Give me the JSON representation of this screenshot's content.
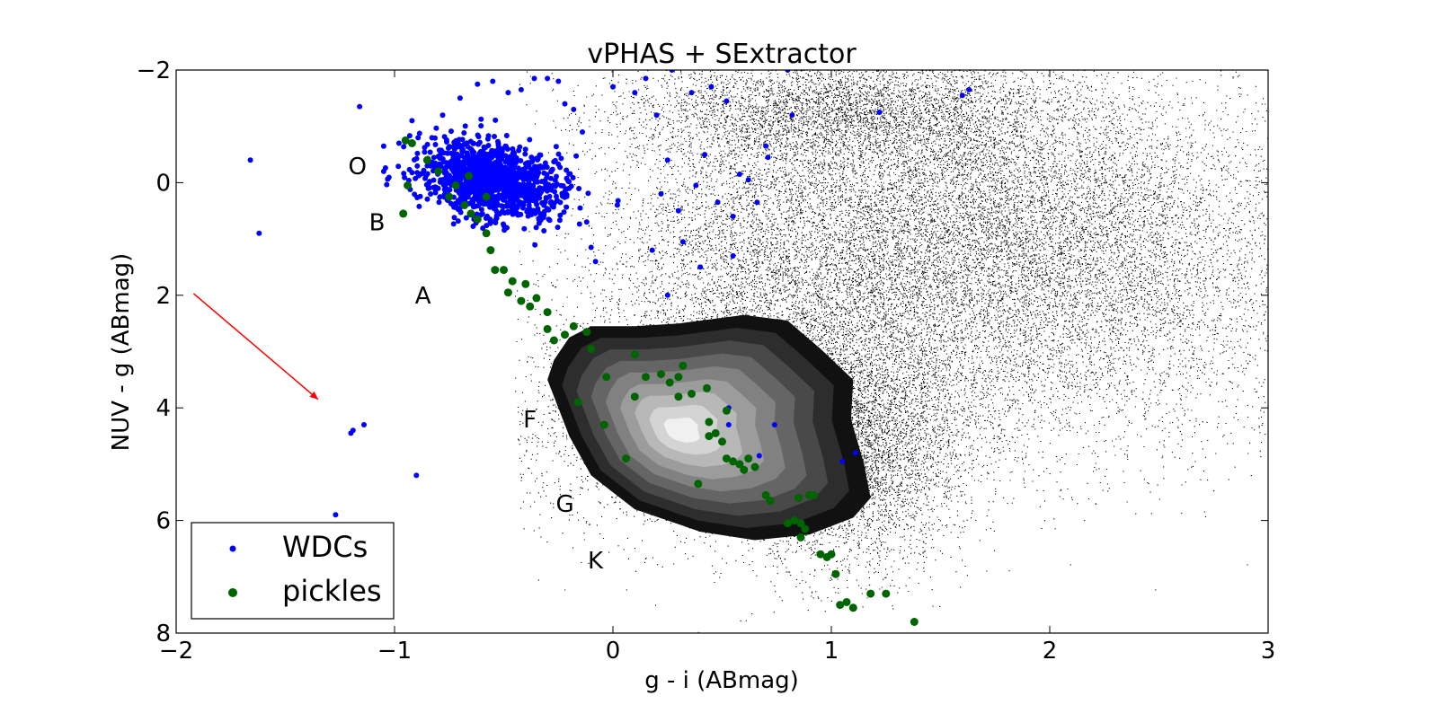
{
  "chart_data": {
    "type": "scatter",
    "title": "vPHAS + SExtractor",
    "xlabel": "g - i (ABmag)",
    "ylabel": "NUV - g (ABmag)",
    "xlim": [
      -2,
      3
    ],
    "ylim": [
      8,
      -2
    ],
    "y_inverted": true,
    "grid": false,
    "legend": "lower-left",
    "x_ticks": [
      -2,
      -1,
      0,
      1,
      2,
      3
    ],
    "x_tick_labels": [
      "−2",
      "−1",
      "0",
      "1",
      "2",
      "3"
    ],
    "y_ticks": [
      -2,
      0,
      2,
      4,
      6,
      8
    ],
    "y_tick_labels": [
      "−2",
      "0",
      "2",
      "4",
      "6",
      "8"
    ],
    "background_density": {
      "description_series": "field stars",
      "color": "#000000",
      "contour_peak": {
        "x": 0.3,
        "y": 4.4
      },
      "contour_outline": [
        [
          -0.27,
          3.15
        ],
        [
          -0.2,
          2.75
        ],
        [
          -0.1,
          2.55
        ],
        [
          0.1,
          2.55
        ],
        [
          0.3,
          2.5
        ],
        [
          0.6,
          2.35
        ],
        [
          0.8,
          2.45
        ],
        [
          0.95,
          2.95
        ],
        [
          1.1,
          3.5
        ],
        [
          1.09,
          4.2
        ],
        [
          1.15,
          5.0
        ],
        [
          1.18,
          5.6
        ],
        [
          1.1,
          5.95
        ],
        [
          0.9,
          6.25
        ],
        [
          0.65,
          6.35
        ],
        [
          0.4,
          6.2
        ],
        [
          0.1,
          5.8
        ],
        [
          -0.1,
          5.2
        ],
        [
          -0.2,
          4.5
        ],
        [
          -0.3,
          3.5
        ]
      ],
      "contour_levels": 9
    },
    "reddening_vector": {
      "x0": -1.92,
      "y0": 1.97,
      "x1": -1.35,
      "y1": 3.85,
      "color": "#ff0000"
    },
    "spectral_type_labels": [
      {
        "text": "O",
        "x": -1.17,
        "y": -0.15
      },
      {
        "text": "B",
        "x": -1.08,
        "y": 0.85
      },
      {
        "text": "A",
        "x": -0.87,
        "y": 2.15
      },
      {
        "text": "F",
        "x": -0.38,
        "y": 4.35
      },
      {
        "text": "G",
        "x": -0.22,
        "y": 5.85
      },
      {
        "text": "K",
        "x": -0.08,
        "y": 6.85
      }
    ],
    "series": [
      {
        "name": "WDCs",
        "color": "#0000ff",
        "points": [
          [
            -1.66,
            -0.4
          ],
          [
            -1.62,
            0.9
          ],
          [
            -1.16,
            -1.35
          ],
          [
            -1.19,
            4.4
          ],
          [
            -1.2,
            4.45
          ],
          [
            -1.14,
            4.3
          ],
          [
            -0.9,
            5.2
          ],
          [
            -1.27,
            5.9
          ],
          [
            -1.05,
            -0.2
          ],
          [
            -0.98,
            -0.7
          ],
          [
            -0.92,
            -1.1
          ],
          [
            -0.85,
            -0.3
          ],
          [
            -0.8,
            0.1
          ],
          [
            -0.78,
            -1.2
          ],
          [
            -0.7,
            -1.5
          ],
          [
            -0.62,
            -1.75
          ],
          [
            -0.55,
            -1.8
          ],
          [
            -0.48,
            -1.6
          ],
          [
            -0.42,
            -1.65
          ],
          [
            -0.36,
            -1.85
          ],
          [
            -0.3,
            -1.85
          ],
          [
            -0.25,
            -1.8
          ],
          [
            -0.22,
            -1.4
          ],
          [
            -0.18,
            -1.3
          ],
          [
            -0.14,
            -0.9
          ],
          [
            -0.2,
            0.1
          ],
          [
            -0.15,
            0.45
          ],
          [
            -0.12,
            0.7
          ],
          [
            -0.1,
            1.15
          ],
          [
            -0.08,
            1.4
          ],
          [
            0.0,
            -1.7
          ],
          [
            0.1,
            -1.6
          ],
          [
            0.15,
            -1.85
          ],
          [
            0.2,
            -1.2
          ],
          [
            0.22,
            0.2
          ],
          [
            0.25,
            -0.4
          ],
          [
            0.3,
            0.5
          ],
          [
            0.32,
            1.05
          ],
          [
            0.36,
            -1.6
          ],
          [
            0.38,
            0.05
          ],
          [
            0.42,
            -0.5
          ],
          [
            0.45,
            -1.7
          ],
          [
            0.48,
            0.35
          ],
          [
            0.52,
            -1.45
          ],
          [
            0.55,
            0.6
          ],
          [
            0.58,
            -0.15
          ],
          [
            0.62,
            -0.05
          ],
          [
            0.66,
            0.35
          ],
          [
            0.7,
            -0.65
          ],
          [
            0.55,
            1.3
          ],
          [
            0.4,
            1.5
          ],
          [
            0.18,
            1.2
          ],
          [
            0.25,
            2.0
          ],
          [
            0.27,
            -2.0
          ],
          [
            0.53,
            4.0
          ],
          [
            0.53,
            4.3
          ],
          [
            0.74,
            4.3
          ],
          [
            0.67,
            4.85
          ],
          [
            1.05,
            4.95
          ],
          [
            1.11,
            4.8
          ],
          [
            0.8,
            -2.0
          ],
          [
            0.82,
            -1.2
          ],
          [
            1.22,
            -1.25
          ],
          [
            1.6,
            -1.55
          ],
          [
            1.63,
            -1.65
          ],
          [
            0.71,
            -0.45
          ]
        ],
        "cluster": {
          "center": [
            -0.55,
            -0.05
          ],
          "spread": [
            0.16,
            0.45
          ],
          "count": 1200
        }
      },
      {
        "name": "pickles",
        "color": "#006400",
        "points": [
          [
            -0.95,
            -0.75
          ],
          [
            -0.92,
            -0.7
          ],
          [
            -0.96,
            0.55
          ],
          [
            -0.94,
            0.05
          ],
          [
            -0.85,
            -0.4
          ],
          [
            -0.8,
            -0.2
          ],
          [
            -0.75,
            0.25
          ],
          [
            -0.72,
            0.05
          ],
          [
            -0.68,
            0.4
          ],
          [
            -0.65,
            0.55
          ],
          [
            -0.62,
            0.65
          ],
          [
            -0.58,
            0.9
          ],
          [
            -0.56,
            1.2
          ],
          [
            -0.54,
            1.55
          ],
          [
            -0.5,
            1.55
          ],
          [
            -0.46,
            1.75
          ],
          [
            -0.48,
            1.95
          ],
          [
            -0.4,
            1.8
          ],
          [
            -0.42,
            2.1
          ],
          [
            -0.38,
            2.2
          ],
          [
            -0.35,
            2.05
          ],
          [
            -0.3,
            2.3
          ],
          [
            -0.3,
            2.6
          ],
          [
            -0.27,
            2.8
          ],
          [
            -0.22,
            2.7
          ],
          [
            -0.18,
            2.55
          ],
          [
            -0.12,
            2.65
          ],
          [
            -0.1,
            2.95
          ],
          [
            -0.16,
            3.9
          ],
          [
            -0.04,
            4.3
          ],
          [
            0.06,
            4.9
          ],
          [
            0.1,
            3.05
          ],
          [
            0.1,
            3.8
          ],
          [
            0.15,
            3.45
          ],
          [
            0.22,
            3.4
          ],
          [
            0.26,
            3.55
          ],
          [
            0.3,
            3.45
          ],
          [
            0.32,
            3.25
          ],
          [
            0.3,
            3.8
          ],
          [
            0.36,
            3.75
          ],
          [
            0.43,
            3.65
          ],
          [
            0.44,
            4.25
          ],
          [
            0.44,
            4.5
          ],
          [
            0.47,
            4.45
          ],
          [
            0.5,
            4.6
          ],
          [
            0.52,
            4.9
          ],
          [
            0.55,
            4.95
          ],
          [
            0.58,
            5.0
          ],
          [
            0.62,
            4.9
          ],
          [
            0.6,
            5.1
          ],
          [
            0.65,
            5.05
          ],
          [
            0.39,
            5.35
          ],
          [
            0.7,
            5.55
          ],
          [
            0.72,
            5.65
          ],
          [
            0.85,
            5.6
          ],
          [
            0.9,
            5.55
          ],
          [
            0.92,
            5.55
          ],
          [
            0.8,
            6.05
          ],
          [
            0.83,
            6.0
          ],
          [
            0.86,
            6.05
          ],
          [
            0.88,
            6.15
          ],
          [
            0.86,
            6.3
          ],
          [
            0.95,
            6.6
          ],
          [
            0.98,
            6.65
          ],
          [
            1.0,
            6.6
          ],
          [
            1.02,
            6.95
          ],
          [
            1.04,
            7.5
          ],
          [
            1.07,
            7.45
          ],
          [
            1.1,
            7.55
          ],
          [
            1.18,
            7.3
          ],
          [
            1.25,
            7.3
          ],
          [
            1.38,
            7.8
          ],
          [
            -0.03,
            3.45
          ],
          [
            0.52,
            4.05
          ],
          [
            -0.66,
            -0.12
          ],
          [
            -0.58,
            0.25
          ]
        ]
      }
    ]
  }
}
